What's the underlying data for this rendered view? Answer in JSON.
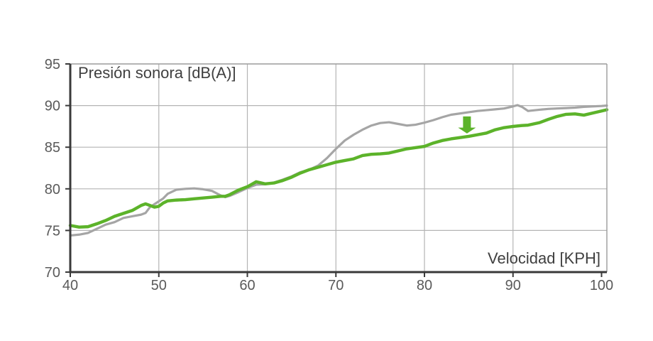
{
  "chart_data": {
    "type": "line",
    "title": "Presión sonora [dB(A)]",
    "xlabel": "Velocidad [KPH]",
    "ylabel": "Presión sonora [dB(A)]",
    "xlim": [
      40,
      100.6
    ],
    "ylim": [
      70,
      95
    ],
    "x_ticks": [
      40,
      50,
      60,
      70,
      80,
      90,
      100
    ],
    "y_ticks": [
      70,
      75,
      80,
      85,
      90,
      95
    ],
    "x_grid": [
      50,
      60,
      70,
      80,
      90
    ],
    "y_grid": [
      75,
      80,
      85,
      90
    ],
    "grid": true,
    "legend": "none",
    "x": [
      40,
      41,
      42,
      43,
      44,
      45,
      46,
      47,
      48,
      48.5,
      49,
      49.5,
      50,
      50.5,
      51,
      52,
      53,
      54,
      55,
      56,
      57,
      57.5,
      58,
      59,
      60,
      61,
      62,
      63,
      64,
      65,
      66,
      67,
      68,
      69,
      70,
      71,
      72,
      73,
      74,
      75,
      76,
      77,
      78,
      79,
      80,
      81,
      82,
      83,
      84,
      85,
      86,
      87,
      88,
      89,
      90,
      90.5,
      91,
      91.7,
      93,
      94,
      95,
      96,
      97,
      98,
      99,
      100,
      100.6
    ],
    "series": [
      {
        "name": "linea-gris-referencia",
        "color": "#a5a5a5",
        "width": 3.2,
        "values": [
          74.4,
          74.5,
          74.7,
          75.2,
          75.7,
          76.0,
          76.5,
          76.7,
          76.9,
          77.1,
          77.8,
          78.15,
          78.5,
          78.85,
          79.4,
          79.9,
          80.0,
          80.05,
          79.95,
          79.75,
          79.2,
          79.0,
          79.15,
          79.6,
          80.1,
          80.5,
          80.55,
          80.75,
          81.1,
          81.5,
          82.0,
          82.3,
          82.8,
          83.7,
          84.8,
          85.8,
          86.5,
          87.1,
          87.6,
          87.9,
          88.0,
          87.8,
          87.6,
          87.7,
          87.95,
          88.25,
          88.6,
          88.9,
          89.05,
          89.2,
          89.35,
          89.45,
          89.55,
          89.65,
          89.9,
          90.05,
          89.85,
          89.35,
          89.5,
          89.6,
          89.65,
          89.7,
          89.75,
          89.85,
          89.9,
          89.95,
          90.0
        ]
      },
      {
        "name": "linea-verde-optimizada",
        "color": "#5cb32a",
        "width": 4.4,
        "values": [
          75.6,
          75.4,
          75.45,
          75.8,
          76.2,
          76.7,
          77.05,
          77.4,
          78.0,
          78.2,
          78.0,
          77.8,
          77.9,
          78.3,
          78.55,
          78.65,
          78.7,
          78.8,
          78.9,
          79.0,
          79.1,
          79.1,
          79.3,
          79.85,
          80.25,
          80.85,
          80.6,
          80.7,
          81.0,
          81.4,
          81.9,
          82.3,
          82.6,
          82.9,
          83.2,
          83.4,
          83.6,
          84.0,
          84.15,
          84.2,
          84.3,
          84.55,
          84.8,
          84.95,
          85.1,
          85.5,
          85.8,
          86.0,
          86.15,
          86.3,
          86.5,
          86.7,
          87.1,
          87.35,
          87.5,
          87.55,
          87.6,
          87.65,
          87.95,
          88.35,
          88.7,
          88.95,
          89.0,
          88.85,
          89.1,
          89.35,
          89.5
        ]
      }
    ],
    "annotation": {
      "type": "arrow-down",
      "x": 84.8,
      "y_from": 88.7,
      "y_head": 87.35,
      "y_to": 86.65,
      "color": "#5cb32a"
    },
    "colors": {
      "axis": "#3a3a3a",
      "grid": "#b4b4b4",
      "border": "#9b9b9b",
      "tick_label": "#5a5a5a",
      "title_text": "#3f3f3f",
      "background": "#ffffff"
    }
  }
}
